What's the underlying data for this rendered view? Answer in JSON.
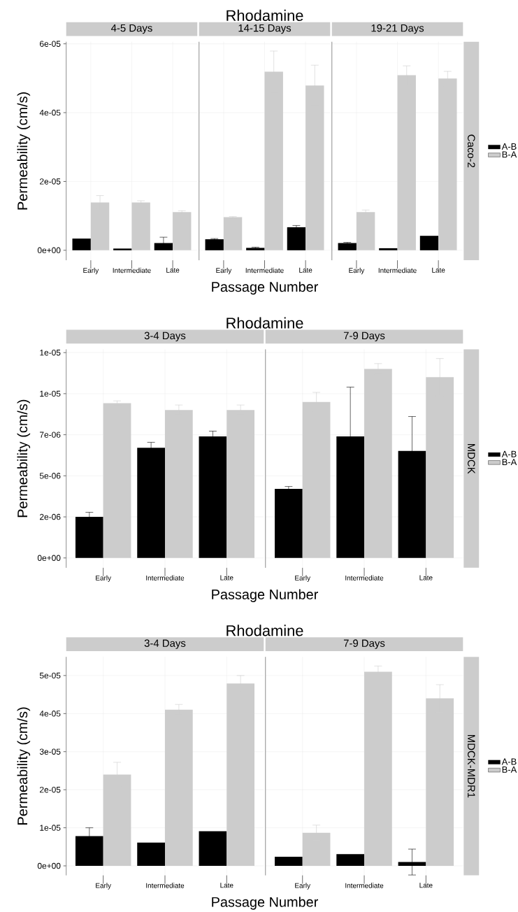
{
  "chart_data": [
    {
      "type": "bar",
      "title": "4-5 Days",
      "ylabel": "Permeability (cm/s)",
      "xlabel": "Passage Number",
      "annotations": [
        "Rhodamine"
      ],
      "categories": [
        "Early",
        "Intermediate",
        "Late"
      ],
      "grid": true,
      "ylim": [
        -2.9e-06,
        6.06e-05
      ],
      "yticks": [
        {
          "value": 0,
          "label": "0e+00"
        },
        {
          "value": 2e-05,
          "label": "2e-05"
        },
        {
          "value": 4e-05,
          "label": "4e-05"
        },
        {
          "value": 6e-05,
          "label": "6e-05"
        }
      ],
      "series": [
        {
          "color": "#000000",
          "values": [
            3.4e-06,
            5e-07,
            2.1e-06
          ],
          "errors": [
            null,
            null,
            1.7e-06
          ]
        },
        {
          "color": "#cccccc",
          "values": [
            1.39e-05,
            1.39e-05,
            1.11e-05
          ],
          "errors": [
            2e-06,
            5e-07,
            4e-07
          ]
        }
      ]
    },
    {
      "type": "bar",
      "title": "14-15 Days",
      "tick_labels": "x",
      "categories": [
        "Early",
        "Intermediate",
        "Late"
      ],
      "grid": true,
      "ylim": [
        -2.9e-06,
        6.06e-05
      ],
      "yticks": [
        {
          "value": 0,
          "label": null
        },
        {
          "value": 2e-05,
          "label": null
        },
        {
          "value": 4e-05,
          "label": null
        },
        {
          "value": 6e-05,
          "label": null
        }
      ],
      "series": [
        {
          "color": "#000000",
          "values": [
            3.2e-06,
            7e-07,
            6.7e-06
          ],
          "errors": [
            2e-07,
            2e-07,
            5e-07
          ]
        },
        {
          "color": "#cccccc",
          "values": [
            9.6e-06,
            5.19e-05,
            4.79e-05
          ],
          "errors": [
            2e-07,
            6e-06,
            5.9e-06
          ]
        }
      ]
    },
    {
      "type": "bar",
      "title": "19-21 Days",
      "tick_labels": "x",
      "annotations": [
        "Caco-2"
      ],
      "legend": "right",
      "categories": [
        "Early",
        "Intermediate",
        "Late"
      ],
      "grid": true,
      "ylim": [
        -2.9e-06,
        6.06e-05
      ],
      "yticks": [
        {
          "value": 0,
          "label": null
        },
        {
          "value": 2e-05,
          "label": null
        },
        {
          "value": 4e-05,
          "label": null
        },
        {
          "value": 6e-05,
          "label": null
        }
      ],
      "series": [
        {
          "name": "A-B",
          "color": "#000000",
          "values": [
            2.1e-06,
            6e-07,
            4.2e-06
          ],
          "errors": [
            2e-07,
            null,
            null
          ]
        },
        {
          "name": "B-A",
          "color": "#cccccc",
          "values": [
            1.11e-05,
            5.09e-05,
            4.99e-05
          ],
          "errors": [
            6e-07,
            2.7e-06,
            2.1e-06
          ]
        }
      ]
    },
    {
      "type": "bar",
      "title": "3-4 Days",
      "ylabel": "Permeability (cm/s)",
      "xlabel": "Passage Number",
      "annotations": [
        "Rhodamine"
      ],
      "categories": [
        "Early",
        "Intermediate",
        "Late"
      ],
      "grid": true,
      "ylim": [
        -6e-07,
        1.27e-05
      ],
      "yticks": [
        {
          "value": 0,
          "label": "0e+00"
        },
        {
          "value": 2.5e-06,
          "label": "2e-06"
        },
        {
          "value": 5e-06,
          "label": "5e-06"
        },
        {
          "value": 7.5e-06,
          "label": "7e-06"
        },
        {
          "value": 1e-05,
          "label": "1e-05"
        },
        {
          "value": 1.25e-05,
          "label": "1e-05"
        }
      ],
      "series": [
        {
          "color": "#000000",
          "values": [
            2.5e-06,
            6.71e-06,
            7.4e-06
          ],
          "errors": [
            2.8e-07,
            3.3e-07,
            3.2e-07
          ]
        },
        {
          "color": "#cccccc",
          "values": [
            9.42e-06,
            9.01e-06,
            9.01e-06
          ],
          "errors": [
            1.4e-07,
            3e-07,
            3e-07
          ]
        }
      ]
    },
    {
      "type": "bar",
      "title": "7-9 Days",
      "tick_labels": "x",
      "annotations": [
        "MDCK"
      ],
      "legend": "right",
      "categories": [
        "Early",
        "Intermediate",
        "Late"
      ],
      "grid": true,
      "ylim": [
        -6e-07,
        1.27e-05
      ],
      "yticks": [
        {
          "value": 0,
          "label": null
        },
        {
          "value": 2.5e-06,
          "label": null
        },
        {
          "value": 5e-06,
          "label": null
        },
        {
          "value": 7.5e-06,
          "label": null
        },
        {
          "value": 1e-05,
          "label": null
        },
        {
          "value": 1.25e-05,
          "label": null
        }
      ],
      "series": [
        {
          "name": "A-B",
          "color": "#000000",
          "values": [
            4.21e-06,
            7.4e-06,
            6.51e-06
          ],
          "errors": [
            1.4e-07,
            3e-06,
            2.1e-06
          ]
        },
        {
          "name": "B-A",
          "color": "#cccccc",
          "values": [
            9.5e-06,
            1.151e-05,
            1.101e-05
          ],
          "errors": [
            5.8e-07,
            3.2e-07,
            1.13e-06
          ]
        }
      ]
    },
    {
      "type": "bar",
      "title": "3-4 Days",
      "ylabel": "Permeability (cm/s)",
      "xlabel": "Passage Number",
      "annotations": [
        "Rhodamine"
      ],
      "categories": [
        "Early",
        "Intermediate",
        "Late"
      ],
      "grid": true,
      "ylim": [
        -2.5e-06,
        5.49e-05
      ],
      "yticks": [
        {
          "value": 0,
          "label": "0e+00"
        },
        {
          "value": 1e-05,
          "label": "1e-05"
        },
        {
          "value": 2e-05,
          "label": "2e-05"
        },
        {
          "value": 3e-05,
          "label": "3e-05"
        },
        {
          "value": 4e-05,
          "label": "4e-05"
        },
        {
          "value": 5e-05,
          "label": "5e-05"
        }
      ],
      "series": [
        {
          "color": "#000000",
          "values": [
            7.8e-06,
            6.1e-06,
            9.1e-06
          ],
          "errors": [
            2.2e-06,
            null,
            null
          ]
        },
        {
          "color": "#cccccc",
          "values": [
            2.4e-05,
            4.1e-05,
            4.79e-05
          ],
          "errors": [
            3.2e-06,
            1.4e-06,
            2.1e-06
          ]
        }
      ]
    },
    {
      "type": "bar",
      "title": "7-9 Days",
      "tick_labels": "x",
      "annotations": [
        "MDCK-MDR1"
      ],
      "legend": "right",
      "categories": [
        "Early",
        "Intermediate",
        "Late"
      ],
      "grid": true,
      "ylim": [
        -2.5e-06,
        5.49e-05
      ],
      "yticks": [
        {
          "value": 0,
          "label": null
        },
        {
          "value": 1e-05,
          "label": null
        },
        {
          "value": 2e-05,
          "label": null
        },
        {
          "value": 3e-05,
          "label": null
        },
        {
          "value": 4e-05,
          "label": null
        },
        {
          "value": 5e-05,
          "label": null
        }
      ],
      "series": [
        {
          "name": "A-B",
          "color": "#000000",
          "values": [
            2.4e-06,
            3.1e-06,
            1e-06
          ],
          "errors": [
            null,
            null,
            3.4e-06
          ]
        },
        {
          "name": "B-A",
          "color": "#cccccc",
          "values": [
            8.7e-06,
            5.1e-05,
            4.4e-05
          ],
          "errors": [
            2e-06,
            1.5e-06,
            3.6e-06
          ]
        }
      ]
    }
  ]
}
